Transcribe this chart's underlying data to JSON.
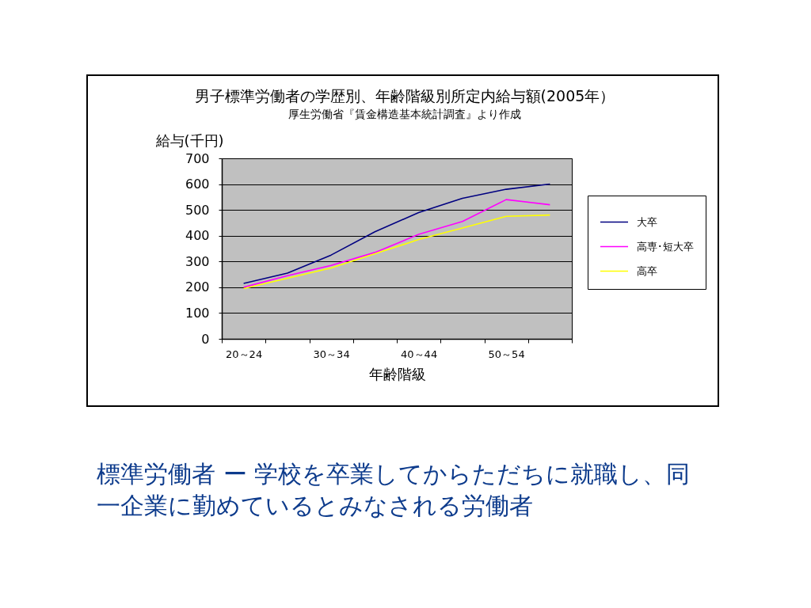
{
  "chart_data": {
    "type": "line",
    "title": "男子標準労働者の学歴別、年齢階級別所定内給与額(2005年）",
    "subtitle": "厚生労働省『賃金構造基本統計調査』より作成",
    "xlabel": "年齢階級",
    "ylabel": "給与(千円)",
    "categories": [
      "20～24",
      null,
      "30～34",
      null,
      "40～44",
      null,
      "50～54",
      null
    ],
    "series": [
      {
        "name": "大卒",
        "color": "#000080",
        "values": [
          215,
          255,
          325,
          415,
          490,
          545,
          580,
          600
        ]
      },
      {
        "name": "高専･短大卒",
        "color": "#ff00ff",
        "values": [
          200,
          245,
          285,
          335,
          405,
          455,
          540,
          520
        ]
      },
      {
        "name": "高卒",
        "color": "#ffff00",
        "values": [
          195,
          235,
          275,
          330,
          385,
          430,
          475,
          480
        ]
      }
    ],
    "ylim": [
      0,
      700
    ],
    "yticks": [
      0,
      100,
      200,
      300,
      400,
      500,
      600,
      700
    ],
    "grid": "y",
    "legend": "right",
    "line_style": "solid",
    "annotations": [
      "標準労働者 ー 学校を卒業してからただちに就職し、同一企業に勤めているとみなされる労働者"
    ]
  }
}
